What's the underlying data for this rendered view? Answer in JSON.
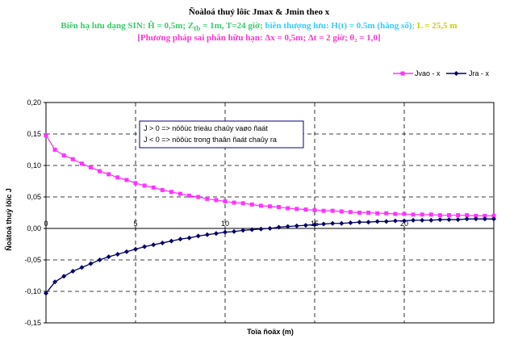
{
  "title": "Ñoàloá thuỷ lôïc Jmax & Jmin theo x",
  "subtitle_line1": [
    {
      "text": "Biên hạ lưu dạng SIN: Ĥ = 0,5m; Z",
      "color": "#33cc66"
    },
    {
      "text": "tb",
      "color": "#33cc66",
      "sub": true
    },
    {
      "text": " = 1m, T=24 giờ; ",
      "color": "#33cc66"
    },
    {
      "text": "biên thượng lưu: H(t) = 0.5m (hằng số)",
      "color": "#33ccff"
    },
    {
      "text": "; L = 25,5 m",
      "color": "#cccc00"
    }
  ],
  "subtitle_line2": "[Phương pháp sai phân hữu hạn: Δx = 0,5m; Δt = 2 giờ; θ₂ = 1,0]",
  "colors": {
    "jvao": "#ff33ff",
    "jra": "#000066",
    "grid": "#000000",
    "annotation_border": "#000080"
  },
  "annotation": {
    "line1": "J > 0 => nöôùc trieàu chaûy vaøo ñaát",
    "line2": "J < 0 => nöôùc trong thaân ñaát chaûy ra"
  },
  "chart_data": {
    "type": "line",
    "xlabel": "Toïa ñoäx (m)",
    "ylabel": "Ñoätoá thuỷ lôïc J",
    "xlim": [
      0,
      25
    ],
    "ylim": [
      -0.15,
      0.2
    ],
    "x_ticks": [
      0,
      5,
      10,
      15,
      20
    ],
    "y_ticks": [
      "0,20",
      "0,15",
      "0,10",
      "0,05",
      "0,00",
      "-0,05",
      "-0,10",
      "-0,15"
    ],
    "y_tick_values": [
      0.2,
      0.15,
      0.1,
      0.05,
      0.0,
      -0.05,
      -0.1,
      -0.15
    ],
    "grid": "dashed",
    "legend_position": "top-right",
    "x": [
      0,
      0.5,
      1,
      1.5,
      2,
      2.5,
      3,
      3.5,
      4,
      4.5,
      5,
      5.5,
      6,
      6.5,
      7,
      7.5,
      8,
      8.5,
      9,
      9.5,
      10,
      10.5,
      11,
      11.5,
      12,
      12.5,
      13,
      13.5,
      14,
      14.5,
      15,
      15.5,
      16,
      16.5,
      17,
      17.5,
      18,
      18.5,
      19,
      19.5,
      20,
      20.5,
      21,
      21.5,
      22,
      22.5,
      23,
      23.5,
      24,
      24.5,
      25
    ],
    "series": [
      {
        "name": "Jvao - x",
        "marker": "square",
        "values": [
          0.148,
          0.125,
          0.116,
          0.11,
          0.103,
          0.097,
          0.091,
          0.086,
          0.081,
          0.077,
          0.072,
          0.068,
          0.065,
          0.061,
          0.058,
          0.055,
          0.052,
          0.05,
          0.047,
          0.045,
          0.043,
          0.041,
          0.04,
          0.038,
          0.036,
          0.035,
          0.034,
          0.032,
          0.031,
          0.03,
          0.029,
          0.028,
          0.028,
          0.027,
          0.026,
          0.025,
          0.025,
          0.024,
          0.024,
          0.023,
          0.023,
          0.022,
          0.022,
          0.022,
          0.021,
          0.021,
          0.021,
          0.021,
          0.02,
          0.02,
          0.02
        ]
      },
      {
        "name": "Jra - x",
        "marker": "diamond",
        "values": [
          -0.103,
          -0.085,
          -0.076,
          -0.068,
          -0.062,
          -0.056,
          -0.05,
          -0.045,
          -0.041,
          -0.037,
          -0.033,
          -0.029,
          -0.026,
          -0.023,
          -0.02,
          -0.017,
          -0.015,
          -0.012,
          -0.01,
          -0.008,
          -0.006,
          -0.005,
          -0.003,
          -0.002,
          -0.001,
          0.0,
          0.002,
          0.003,
          0.004,
          0.005,
          0.006,
          0.007,
          0.008,
          0.008,
          0.009,
          0.01,
          0.01,
          0.011,
          0.011,
          0.012,
          0.012,
          0.013,
          0.013,
          0.013,
          0.014,
          0.014,
          0.014,
          0.015,
          0.015,
          0.015,
          0.015
        ]
      }
    ]
  }
}
